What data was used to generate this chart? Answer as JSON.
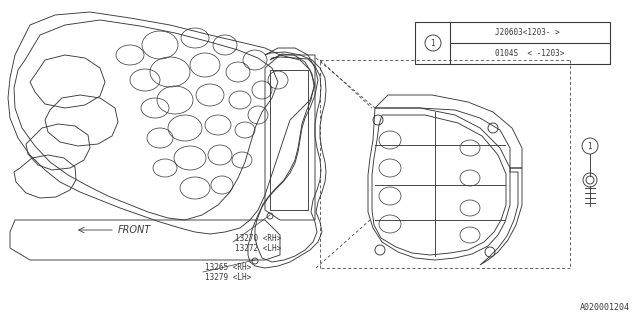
{
  "bg_color": "#ffffff",
  "line_color": "#3a3a3a",
  "lw": 0.65,
  "legend_row1": "0104S  < -1203>",
  "legend_row2": "J20603<1203- >",
  "front_label": "←FRONT",
  "footer_text": "A020001204",
  "label_13270": "13270 <RH>",
  "label_13272": "13272 <LH>",
  "label_13265": "13265 <RH>",
  "label_13279": "13279 <LH>"
}
